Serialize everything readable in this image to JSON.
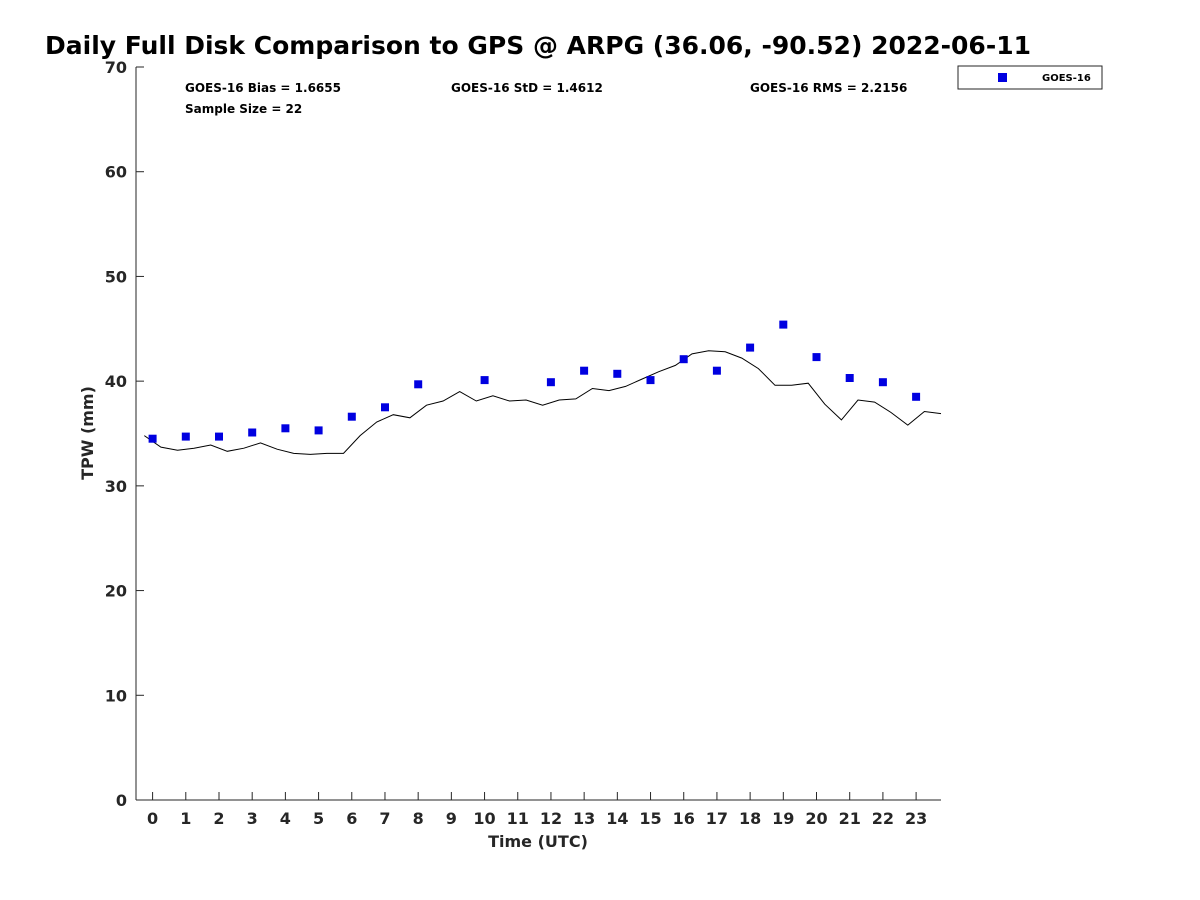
{
  "colors": {
    "goes_marker": "#0000e0",
    "gps_line": "#000000",
    "axis": "#262626"
  },
  "chart_data": {
    "type": "scatter",
    "title": "Daily Full Disk Comparison to GPS @ ARPG (36.06, -90.52) 2022-06-11",
    "xlabel": "Time (UTC)",
    "ylabel": "TPW (mm)",
    "xlim": [
      -0.5,
      23.75
    ],
    "ylim": [
      0,
      70
    ],
    "xticks": [
      "0",
      "1",
      "2",
      "3",
      "4",
      "5",
      "6",
      "7",
      "8",
      "9",
      "10",
      "11",
      "12",
      "13",
      "14",
      "15",
      "16",
      "17",
      "18",
      "19",
      "20",
      "21",
      "22",
      "23"
    ],
    "yticks": [
      "0",
      "10",
      "20",
      "30",
      "40",
      "50",
      "60",
      "70"
    ],
    "grid": false,
    "legend": {
      "position": "outside-top-right",
      "entries": [
        "GOES-16"
      ]
    },
    "stats": {
      "bias": "GOES-16 Bias = 1.6655",
      "std": "GOES-16 StD = 1.4612",
      "rms": "GOES-16 RMS = 2.2156",
      "sample": "Sample Size = 22"
    },
    "series": [
      {
        "name": "GOES-16",
        "kind": "marker",
        "x": [
          0,
          1,
          2,
          3,
          4,
          5,
          6,
          7,
          8,
          10,
          12,
          13,
          14,
          15,
          16,
          17,
          18,
          19,
          20,
          21,
          22,
          23
        ],
        "y": [
          34.5,
          34.7,
          34.7,
          35.1,
          35.5,
          35.3,
          36.6,
          37.5,
          39.7,
          40.1,
          39.9,
          41.0,
          40.7,
          40.1,
          42.1,
          41.0,
          43.2,
          45.4,
          42.3,
          40.3,
          39.9,
          38.5
        ]
      },
      {
        "kind": "line",
        "x": [
          -0.25,
          0.25,
          0.75,
          1.25,
          1.75,
          2.25,
          2.75,
          3.25,
          3.75,
          4.25,
          4.75,
          5.25,
          5.75,
          6.25,
          6.75,
          7.25,
          7.75,
          8.25,
          8.75,
          9.25,
          9.75,
          10.25,
          10.75,
          11.25,
          11.75,
          12.25,
          12.75,
          13.25,
          13.75,
          14.25,
          14.75,
          15.25,
          15.75,
          16.25,
          16.75,
          17.25,
          17.75,
          18.25,
          18.75,
          19.25,
          19.75,
          20.25,
          20.75,
          21.25,
          21.75,
          22.25,
          22.75,
          23.25,
          23.75
        ],
        "y": [
          34.8,
          33.7,
          33.4,
          33.6,
          33.9,
          33.3,
          33.6,
          34.1,
          33.5,
          33.1,
          33.0,
          33.1,
          33.1,
          34.8,
          36.1,
          36.8,
          36.5,
          37.7,
          38.1,
          39.0,
          38.1,
          38.6,
          38.1,
          38.2,
          37.7,
          38.2,
          38.3,
          39.3,
          39.1,
          39.5,
          40.2,
          40.9,
          41.5,
          42.6,
          42.9,
          42.8,
          42.2,
          41.2,
          39.6,
          39.6,
          39.8,
          37.8,
          36.3,
          38.2,
          38.0,
          37.0,
          35.8,
          37.1,
          36.9
        ]
      }
    ]
  }
}
